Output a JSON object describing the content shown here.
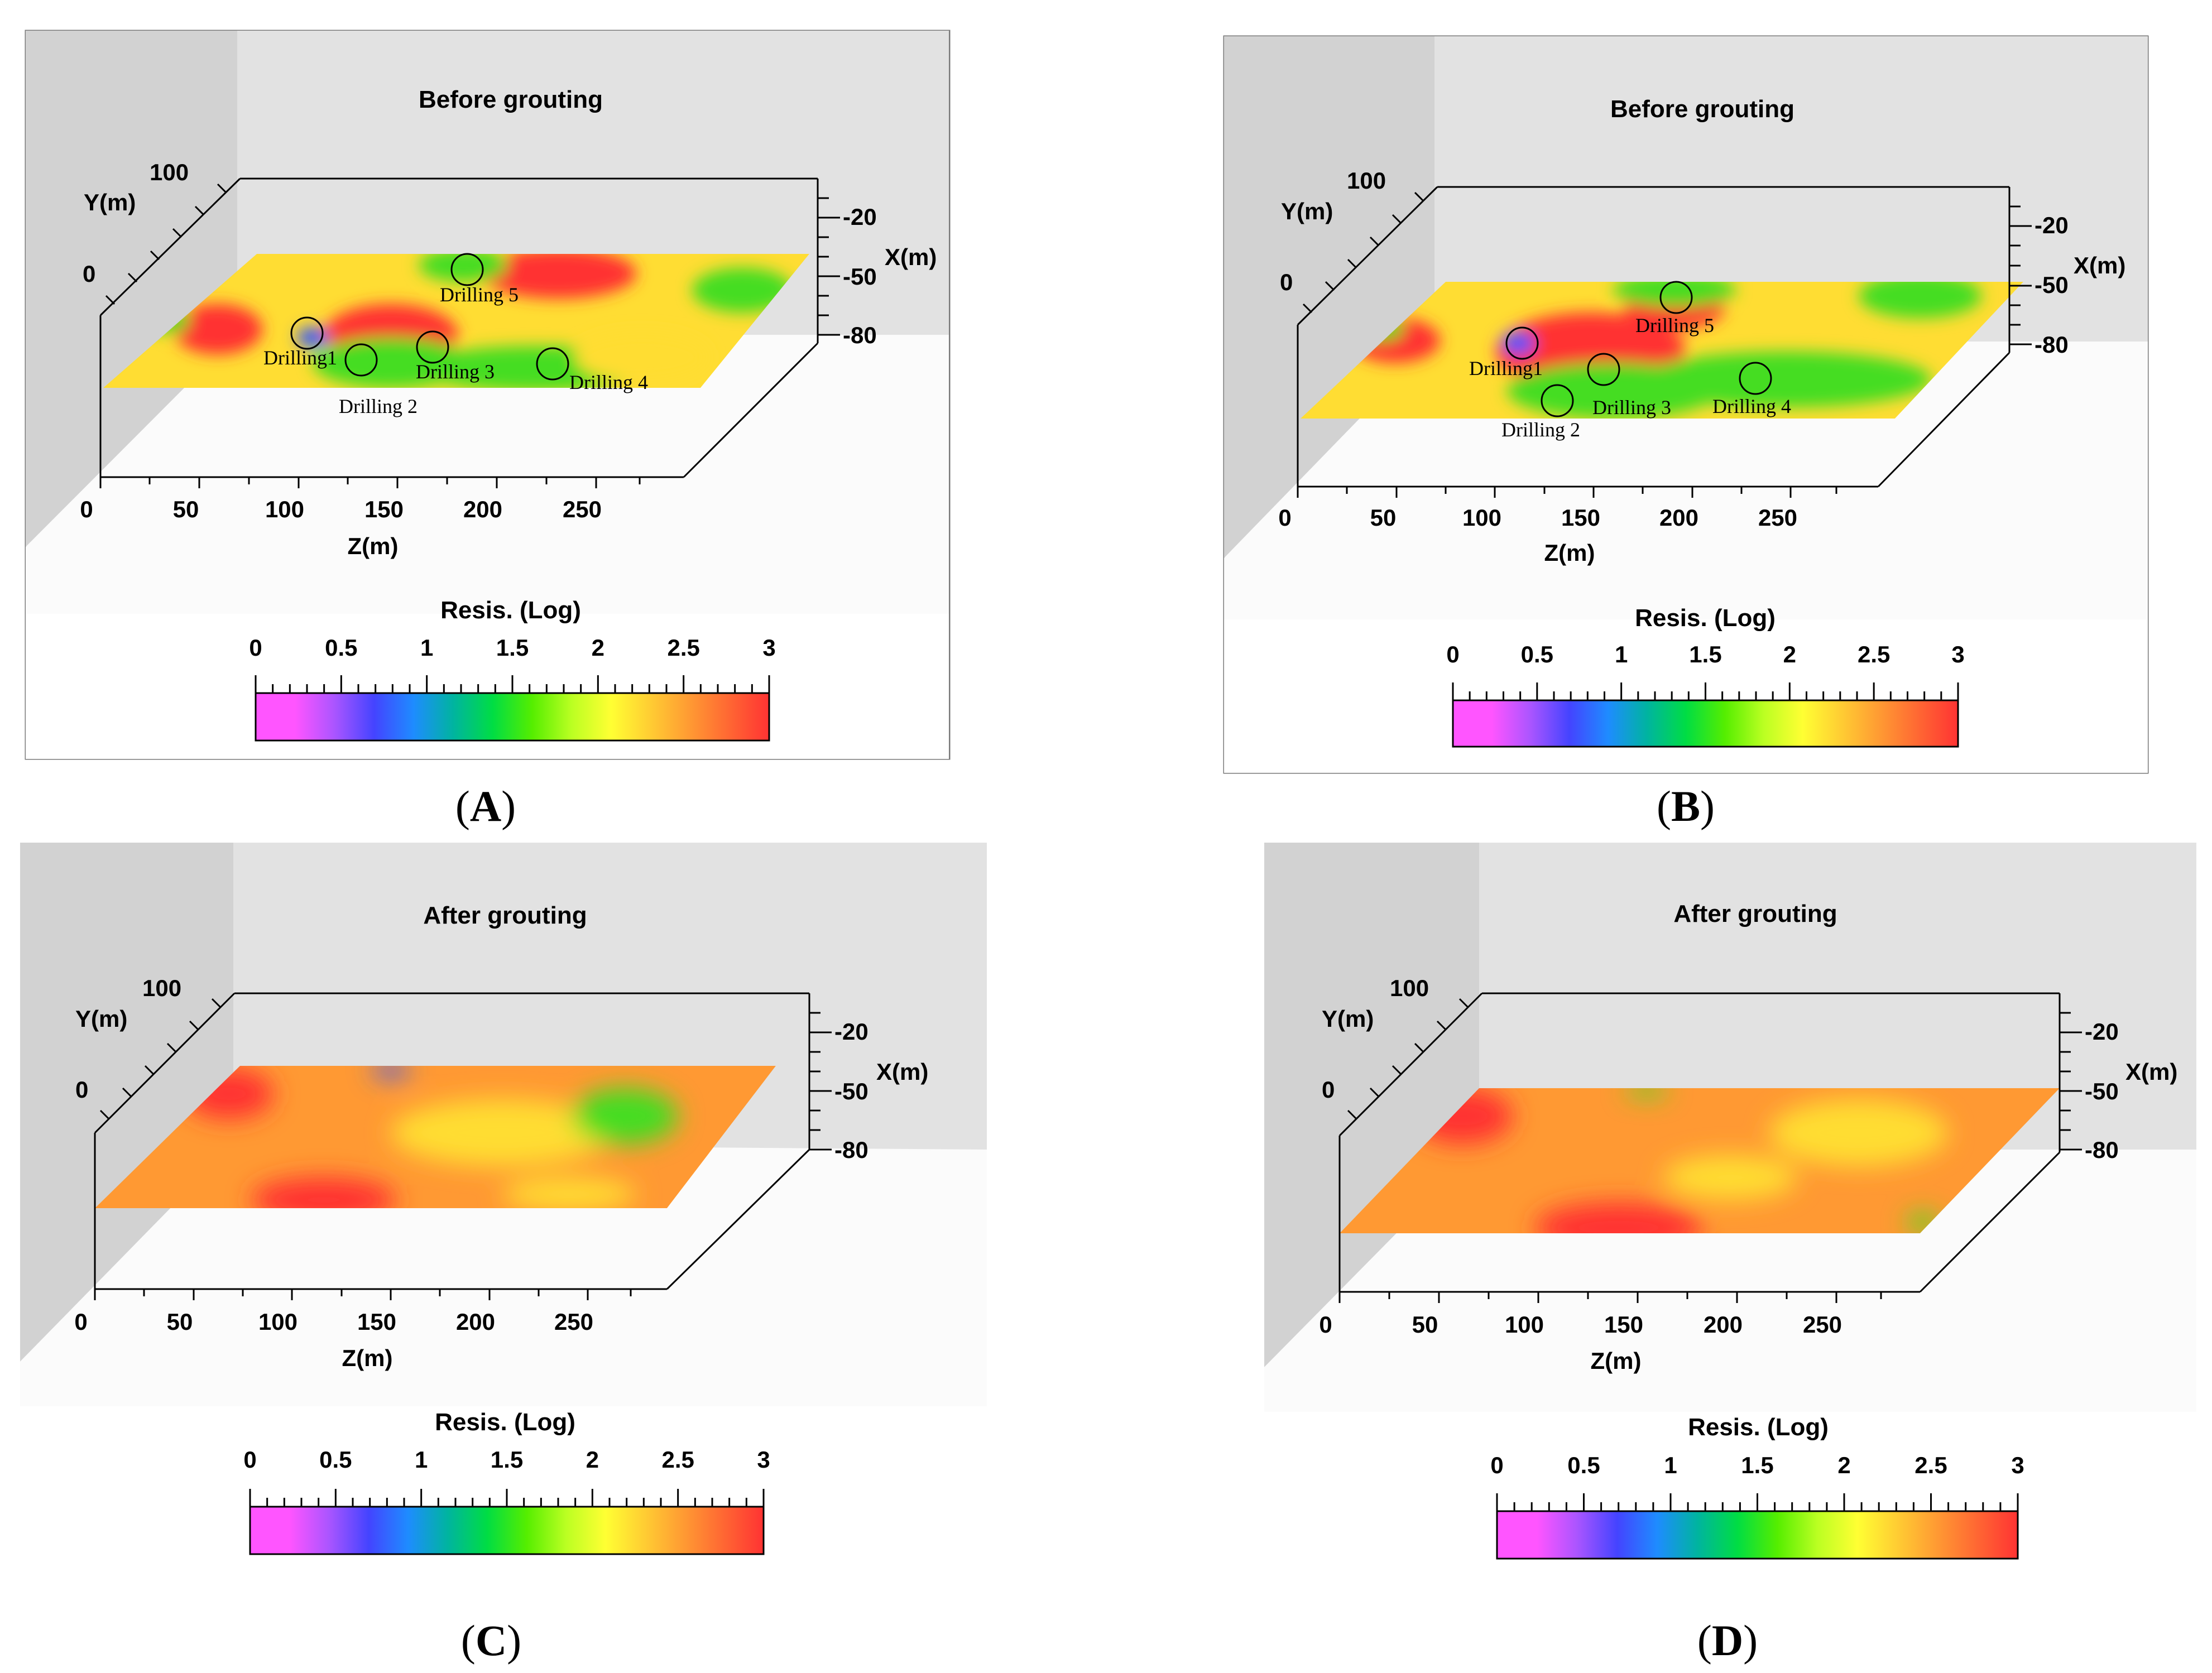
{
  "panels": [
    {
      "id": "A",
      "caption": "A",
      "title": "Before grouting",
      "y_axis_label": "Y(m)",
      "y_ticks": [
        "0",
        "100"
      ],
      "x_axis_label": "X(m)",
      "x_ticks": [
        "-20",
        "-50",
        "-80"
      ],
      "z_axis_label": "Z(m)",
      "z_ticks": [
        "0",
        "50",
        "100",
        "150",
        "200",
        "250"
      ],
      "drillings": [
        "Drilling1",
        "Drilling 2",
        "Drilling 3",
        "Drilling 4",
        "Drilling 5"
      ]
    },
    {
      "id": "B",
      "caption": "B",
      "title": "Before grouting",
      "y_axis_label": "Y(m)",
      "y_ticks": [
        "0",
        "100"
      ],
      "x_axis_label": "X(m)",
      "x_ticks": [
        "-20",
        "-50",
        "-80"
      ],
      "z_axis_label": "Z(m)",
      "z_ticks": [
        "0",
        "50",
        "100",
        "150",
        "200",
        "250"
      ],
      "drillings": [
        "Drilling1",
        "Drilling 2",
        "Drilling 3",
        "Drilling 4",
        "Drilling 5"
      ]
    },
    {
      "id": "C",
      "caption": "C",
      "title": "After grouting",
      "y_axis_label": "Y(m)",
      "y_ticks": [
        "0",
        "100"
      ],
      "x_axis_label": "X(m)",
      "x_ticks": [
        "-20",
        "-50",
        "-80"
      ],
      "z_axis_label": "Z(m)",
      "z_ticks": [
        "0",
        "50",
        "100",
        "150",
        "200",
        "250"
      ],
      "drillings": []
    },
    {
      "id": "D",
      "caption": "D",
      "title": "After grouting",
      "y_axis_label": "Y(m)",
      "y_ticks": [
        "0",
        "100"
      ],
      "x_axis_label": "X(m)",
      "x_ticks": [
        "-20",
        "-50",
        "-80"
      ],
      "z_axis_label": "Z(m)",
      "z_ticks": [
        "0",
        "50",
        "100",
        "150",
        "200",
        "250"
      ],
      "drillings": []
    }
  ],
  "colorbar": {
    "label": "Resis. (Log)",
    "ticks": [
      "0",
      "0.5",
      "1",
      "1.5",
      "2",
      "2.5",
      "3"
    ],
    "colors": [
      "#ff55ff",
      "#ff55ff",
      "#aa55ff",
      "#4444ff",
      "#1e8cff",
      "#00b4a0",
      "#00dd44",
      "#55ee00",
      "#bbff22",
      "#ffff33",
      "#ffcc33",
      "#ff9933",
      "#ff6633",
      "#ff3333"
    ]
  },
  "palette": {
    "field_orange": "#ff9933",
    "field_yellow": "#ffdd33",
    "field_red": "#ff3333",
    "field_green": "#44dd22",
    "field_blue": "#3355ff",
    "wall_dark": "#d2d2d2",
    "wall_light": "#e2e2e2",
    "floor": "#fbfbfb"
  }
}
